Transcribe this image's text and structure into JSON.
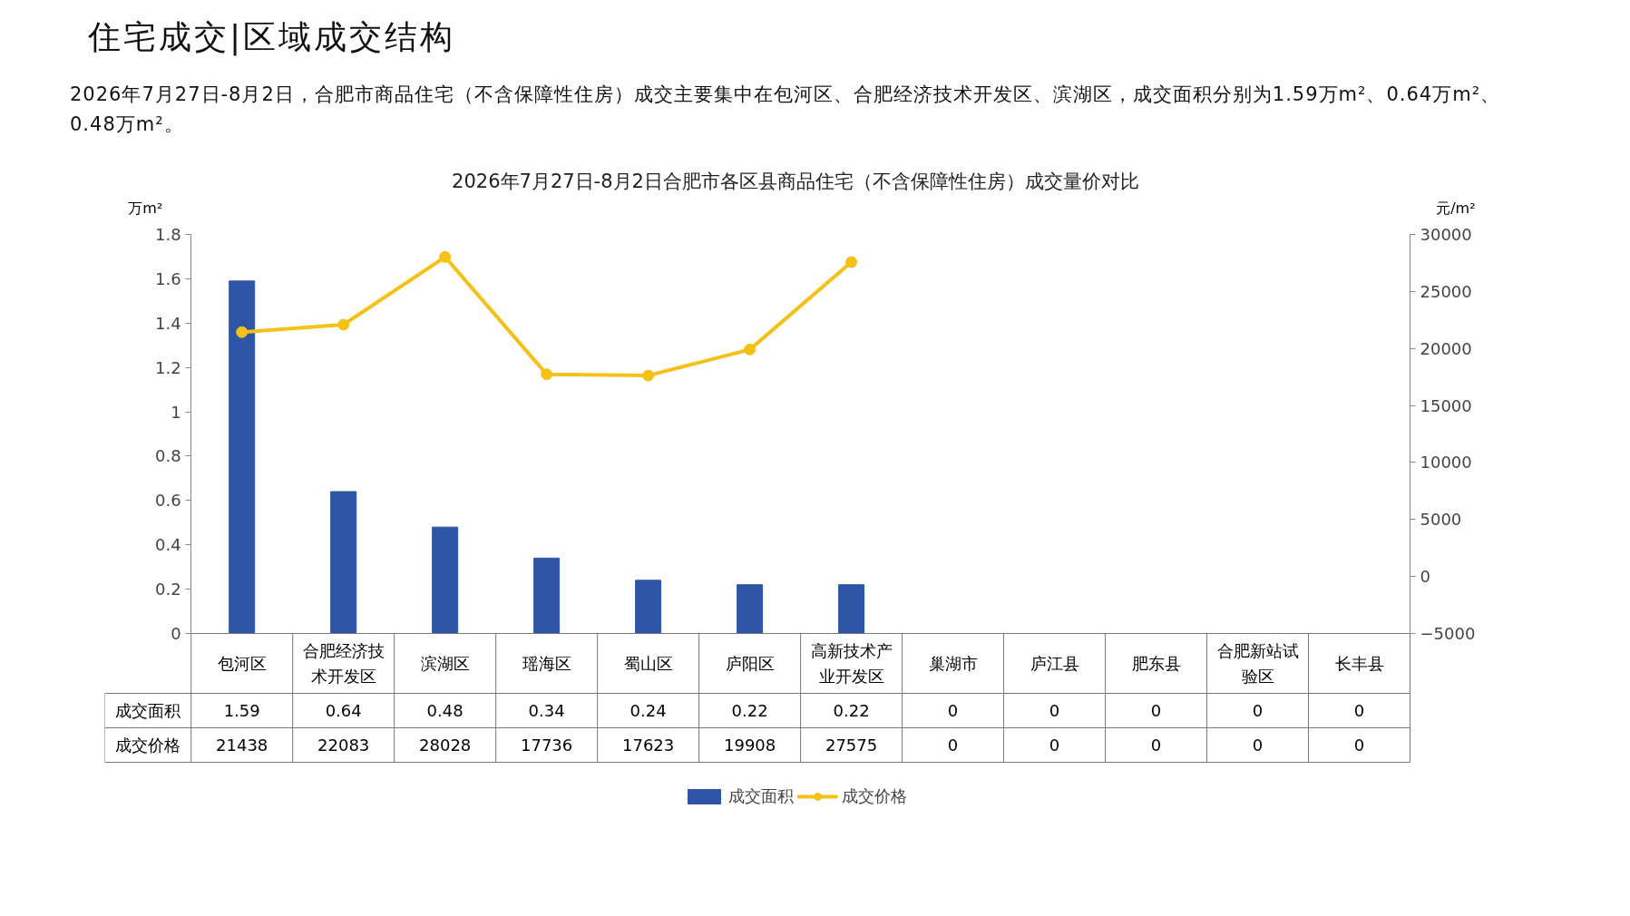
{
  "chart_data": {
    "type": "bar",
    "title": "2026年7月27日-8月2日合肥市各区县商品住宅（不含保障性住房）成交量价对比",
    "annotations": [
      "住宅成交|区域成交结构",
      "2026年7月27日-8月2日，合肥市商品住宅（不含保障性住房）成交主要集中在包河区、合肥经济技术开发区、滨湖区，成交面积分别为1.59万m²、0.64万m²、0.48万m²。"
    ],
    "ylabel": "万m²",
    "y2label": "元/m²",
    "categories": [
      "包河区",
      "合肥经济技术开发区",
      "滨湖区",
      "瑶海区",
      "蜀山区",
      "庐阳区",
      "高新技术产业开发区",
      "巢湖市",
      "庐江县",
      "肥东县",
      "合肥新站试验区",
      "长丰县"
    ],
    "series": [
      {
        "name": "成交面积",
        "color": "#2e55a5",
        "values": [
          1.59,
          0.64,
          0.48,
          0.34,
          0.24,
          0.22,
          0.22,
          0,
          0,
          0,
          0,
          0
        ]
      },
      {
        "name": "成交价格",
        "type": "line",
        "axis": "y2",
        "color": "#f5c116",
        "marker": "circle",
        "values": [
          21438,
          22083,
          28028,
          17736,
          17623,
          19908,
          27575,
          null,
          null,
          null,
          null,
          null
        ],
        "value_labels": [
          "21438",
          "22083",
          "28028",
          "17736",
          "17623",
          "19908",
          "27575",
          "0",
          "0",
          "0",
          "0",
          "0"
        ]
      }
    ],
    "ylim": [
      0,
      1.8
    ],
    "yticks": [
      0,
      0.2,
      0.4,
      0.6,
      0.8,
      1,
      1.2,
      1.4,
      1.6,
      1.8
    ],
    "y2lim": [
      -5000,
      30000
    ],
    "y2ticks": [
      -5000,
      0,
      5000,
      10000,
      15000,
      20000,
      25000,
      30000
    ],
    "data_labels": true,
    "grid": false,
    "legend": "bottom"
  }
}
